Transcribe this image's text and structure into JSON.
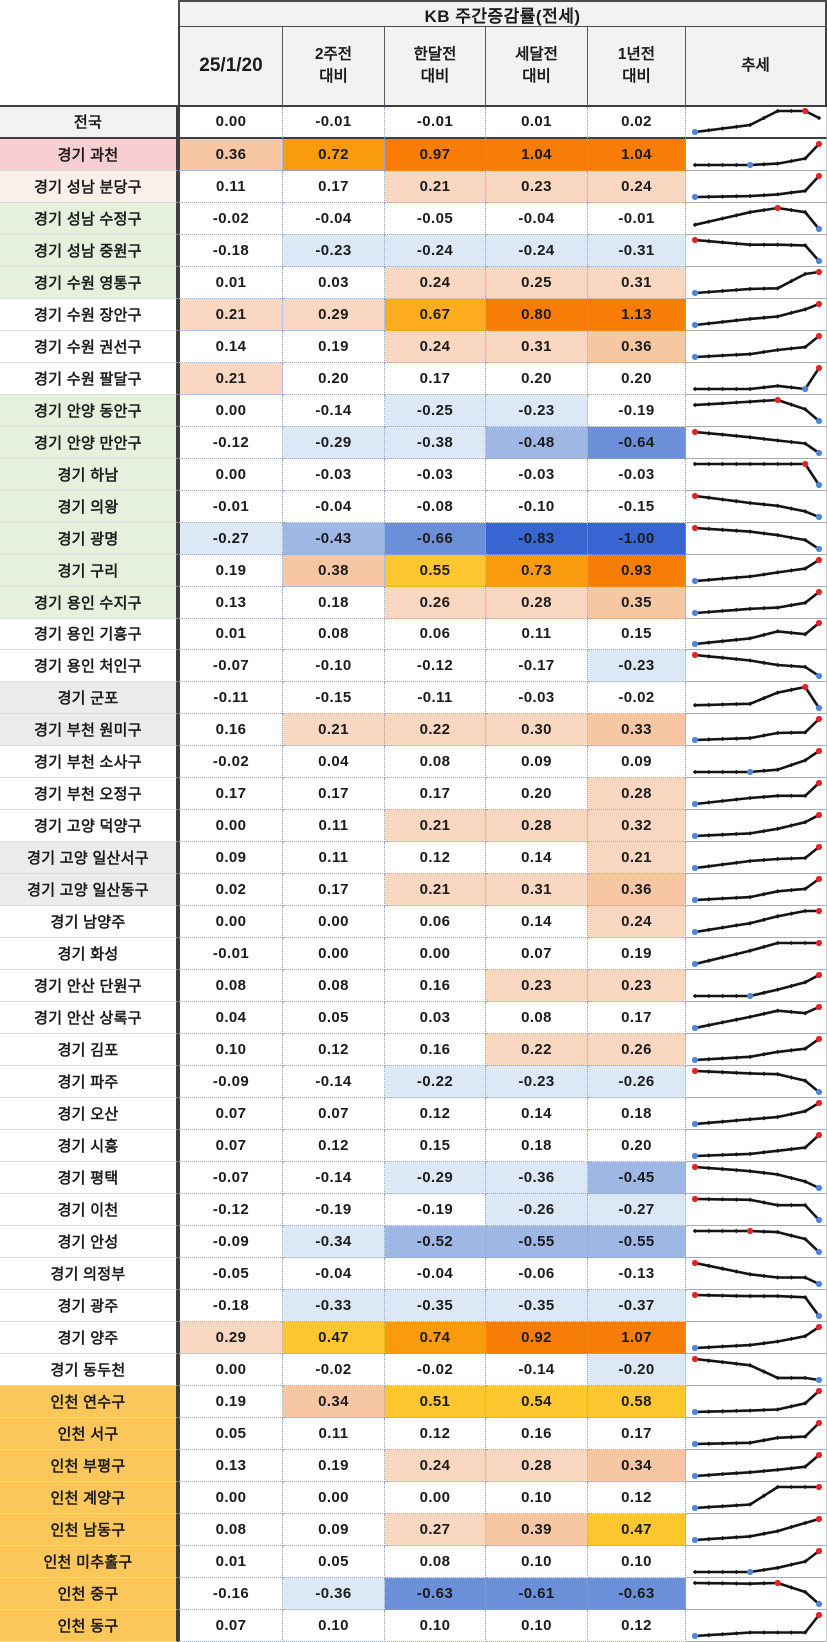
{
  "header": {
    "title": "KB 주간증감률(전세)",
    "columns": [
      "25/1/20",
      "2주전\n대비",
      "한달전\n대비",
      "세달전\n대비",
      "1년전\n대비",
      "추세"
    ]
  },
  "palette": {
    "pos_light": "#F9D7C0",
    "pos_mid": "#F6C7A2",
    "pos_gold": "#FEC62F",
    "pos_amber": "#FDAD1E",
    "pos_orange": "#FA9B0E",
    "pos_deep": "#F87D06",
    "neg_light": "#DCE8F5",
    "neg_mid": "#9FB7E4",
    "neg_strong": "#6B8FD8",
    "neg_deep": "#3766D3",
    "cell_white": "#FFFFFF",
    "label_gray": "#F2F2F2",
    "label_gray2": "#ECECEC",
    "label_pink": "#F9CED3",
    "label_cream": "#FCF1EA",
    "label_green": "#E5F0DD",
    "label_gold": "#FBC75B",
    "spark_line": "#141414",
    "spark_max_dot": "#E0262B",
    "spark_min_dot": "#4F86DC"
  },
  "rows": [
    {
      "region": "전국",
      "region_bg": "label_gray",
      "values": [
        "0.00",
        "-0.01",
        "-0.01",
        "0.01",
        "0.02"
      ]
    },
    {
      "region": "경기 과천",
      "region_bg": "label_pink",
      "values": [
        "0.36",
        "0.72",
        "0.97",
        "1.04",
        "1.04"
      ]
    },
    {
      "region": "경기 성남 분당구",
      "region_bg": "label_cream",
      "values": [
        "0.11",
        "0.17",
        "0.21",
        "0.23",
        "0.24"
      ]
    },
    {
      "region": "경기 성남 수정구",
      "region_bg": "label_green",
      "values": [
        "-0.02",
        "-0.04",
        "-0.05",
        "-0.04",
        "-0.01"
      ]
    },
    {
      "region": "경기 성남 중원구",
      "region_bg": "label_green",
      "values": [
        "-0.18",
        "-0.23",
        "-0.24",
        "-0.24",
        "-0.31"
      ]
    },
    {
      "region": "경기 수원 영통구",
      "region_bg": "label_green",
      "values": [
        "0.01",
        "0.03",
        "0.24",
        "0.25",
        "0.31"
      ]
    },
    {
      "region": "경기 수원 장안구",
      "region_bg": "white",
      "values": [
        "0.21",
        "0.29",
        "0.67",
        "0.80",
        "1.13"
      ]
    },
    {
      "region": "경기 수원 권선구",
      "region_bg": "white",
      "values": [
        "0.14",
        "0.19",
        "0.24",
        "0.31",
        "0.36"
      ]
    },
    {
      "region": "경기 수원 팔달구",
      "region_bg": "white",
      "values": [
        "0.21",
        "0.20",
        "0.17",
        "0.20",
        "0.20"
      ]
    },
    {
      "region": "경기 안양 동안구",
      "region_bg": "label_green",
      "values": [
        "0.00",
        "-0.14",
        "-0.25",
        "-0.23",
        "-0.19"
      ]
    },
    {
      "region": "경기 안양 만안구",
      "region_bg": "label_green",
      "values": [
        "-0.12",
        "-0.29",
        "-0.38",
        "-0.48",
        "-0.64"
      ]
    },
    {
      "region": "경기 하남",
      "region_bg": "label_green",
      "values": [
        "0.00",
        "-0.03",
        "-0.03",
        "-0.03",
        "-0.03"
      ]
    },
    {
      "region": "경기 의왕",
      "region_bg": "label_green",
      "values": [
        "-0.01",
        "-0.04",
        "-0.08",
        "-0.10",
        "-0.15"
      ]
    },
    {
      "region": "경기 광명",
      "region_bg": "label_green",
      "values": [
        "-0.27",
        "-0.43",
        "-0.66",
        "-0.83",
        "-1.00"
      ]
    },
    {
      "region": "경기 구리",
      "region_bg": "label_green",
      "values": [
        "0.19",
        "0.38",
        "0.55",
        "0.73",
        "0.93"
      ]
    },
    {
      "region": "경기 용인 수지구",
      "region_bg": "label_green",
      "values": [
        "0.13",
        "0.18",
        "0.26",
        "0.28",
        "0.35"
      ]
    },
    {
      "region": "경기 용인 기흥구",
      "region_bg": "white",
      "values": [
        "0.01",
        "0.08",
        "0.06",
        "0.11",
        "0.15"
      ]
    },
    {
      "region": "경기 용인 처인구",
      "region_bg": "white",
      "values": [
        "-0.07",
        "-0.10",
        "-0.12",
        "-0.17",
        "-0.23"
      ]
    },
    {
      "region": "경기 군포",
      "region_bg": "label_gray2",
      "values": [
        "-0.11",
        "-0.15",
        "-0.11",
        "-0.03",
        "-0.02"
      ]
    },
    {
      "region": "경기 부천 원미구",
      "region_bg": "label_gray2",
      "values": [
        "0.16",
        "0.21",
        "0.22",
        "0.30",
        "0.33"
      ]
    },
    {
      "region": "경기 부천 소사구",
      "region_bg": "white",
      "values": [
        "-0.02",
        "0.04",
        "0.08",
        "0.09",
        "0.09"
      ]
    },
    {
      "region": "경기 부천 오정구",
      "region_bg": "white",
      "values": [
        "0.17",
        "0.17",
        "0.17",
        "0.20",
        "0.28"
      ]
    },
    {
      "region": "경기 고양 덕양구",
      "region_bg": "white",
      "values": [
        "0.00",
        "0.11",
        "0.21",
        "0.28",
        "0.32"
      ]
    },
    {
      "region": "경기 고양 일산서구",
      "region_bg": "label_gray2",
      "values": [
        "0.09",
        "0.11",
        "0.12",
        "0.14",
        "0.21"
      ]
    },
    {
      "region": "경기 고양 일산동구",
      "region_bg": "label_gray2",
      "values": [
        "0.02",
        "0.17",
        "0.21",
        "0.31",
        "0.36"
      ]
    },
    {
      "region": "경기 남양주",
      "region_bg": "white",
      "values": [
        "0.00",
        "0.00",
        "0.06",
        "0.14",
        "0.24"
      ]
    },
    {
      "region": "경기 화성",
      "region_bg": "white",
      "values": [
        "-0.01",
        "0.00",
        "0.00",
        "0.07",
        "0.19"
      ]
    },
    {
      "region": "경기 안산 단원구",
      "region_bg": "white",
      "values": [
        "0.08",
        "0.08",
        "0.16",
        "0.23",
        "0.23"
      ]
    },
    {
      "region": "경기 안산 상록구",
      "region_bg": "white",
      "values": [
        "0.04",
        "0.05",
        "0.03",
        "0.08",
        "0.17"
      ]
    },
    {
      "region": "경기 김포",
      "region_bg": "white",
      "values": [
        "0.10",
        "0.12",
        "0.16",
        "0.22",
        "0.26"
      ]
    },
    {
      "region": "경기 파주",
      "region_bg": "white",
      "values": [
        "-0.09",
        "-0.14",
        "-0.22",
        "-0.23",
        "-0.26"
      ]
    },
    {
      "region": "경기 오산",
      "region_bg": "white",
      "values": [
        "0.07",
        "0.07",
        "0.12",
        "0.14",
        "0.18"
      ]
    },
    {
      "region": "경기 시흥",
      "region_bg": "white",
      "values": [
        "0.07",
        "0.12",
        "0.15",
        "0.18",
        "0.20"
      ]
    },
    {
      "region": "경기 평택",
      "region_bg": "white",
      "values": [
        "-0.07",
        "-0.14",
        "-0.29",
        "-0.36",
        "-0.45"
      ]
    },
    {
      "region": "경기 이천",
      "region_bg": "white",
      "values": [
        "-0.12",
        "-0.19",
        "-0.19",
        "-0.26",
        "-0.27"
      ]
    },
    {
      "region": "경기 안성",
      "region_bg": "white",
      "values": [
        "-0.09",
        "-0.34",
        "-0.52",
        "-0.55",
        "-0.55"
      ]
    },
    {
      "region": "경기 의정부",
      "region_bg": "white",
      "values": [
        "-0.05",
        "-0.04",
        "-0.04",
        "-0.06",
        "-0.13"
      ]
    },
    {
      "region": "경기 광주",
      "region_bg": "white",
      "values": [
        "-0.18",
        "-0.33",
        "-0.35",
        "-0.35",
        "-0.37"
      ]
    },
    {
      "region": "경기 양주",
      "region_bg": "white",
      "values": [
        "0.29",
        "0.47",
        "0.74",
        "0.92",
        "1.07"
      ]
    },
    {
      "region": "경기 동두천",
      "region_bg": "white",
      "values": [
        "0.00",
        "-0.02",
        "-0.02",
        "-0.14",
        "-0.20"
      ]
    },
    {
      "region": "인천 연수구",
      "region_bg": "label_gold",
      "values": [
        "0.19",
        "0.34",
        "0.51",
        "0.54",
        "0.58"
      ]
    },
    {
      "region": "인천 서구",
      "region_bg": "label_gold",
      "values": [
        "0.05",
        "0.11",
        "0.12",
        "0.16",
        "0.17"
      ]
    },
    {
      "region": "인천 부평구",
      "region_bg": "label_gold",
      "values": [
        "0.13",
        "0.19",
        "0.24",
        "0.28",
        "0.34"
      ]
    },
    {
      "region": "인천 계양구",
      "region_bg": "label_gold",
      "values": [
        "0.00",
        "0.00",
        "0.00",
        "0.10",
        "0.12"
      ]
    },
    {
      "region": "인천 남동구",
      "region_bg": "label_gold",
      "values": [
        "0.08",
        "0.09",
        "0.27",
        "0.39",
        "0.47"
      ]
    },
    {
      "region": "인천 미추홀구",
      "region_bg": "label_gold",
      "values": [
        "0.01",
        "0.05",
        "0.08",
        "0.10",
        "0.10"
      ]
    },
    {
      "region": "인천 중구",
      "region_bg": "label_gold",
      "values": [
        "-0.16",
        "-0.36",
        "-0.63",
        "-0.61",
        "-0.63"
      ]
    },
    {
      "region": "인천 동구",
      "region_bg": "label_gold",
      "values": [
        "0.07",
        "0.10",
        "0.10",
        "0.10",
        "0.12"
      ]
    }
  ]
}
